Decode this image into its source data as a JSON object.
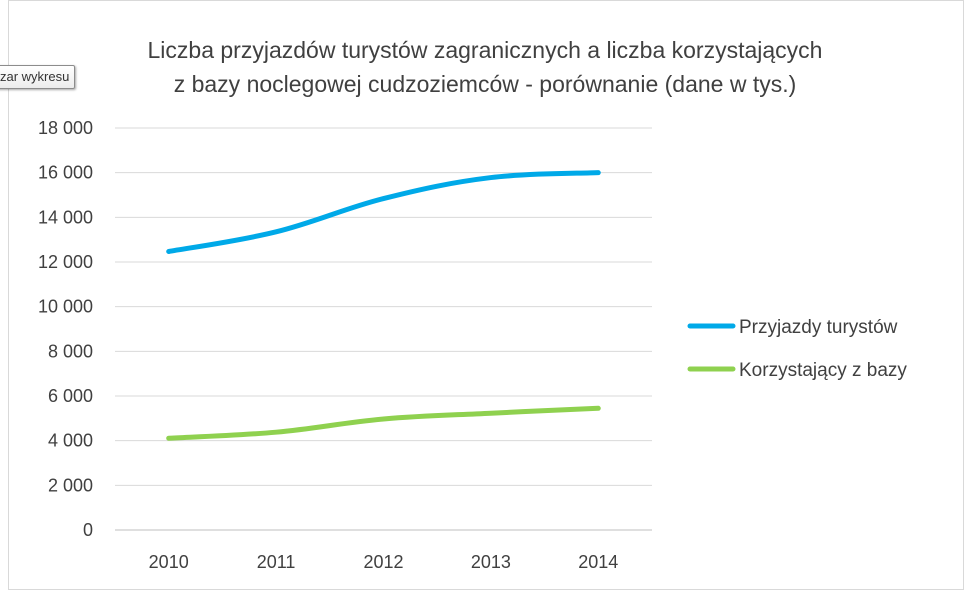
{
  "tooltip": {
    "label": "zar wykresu"
  },
  "chart_data": {
    "type": "line",
    "title_line1": "Liczba przyjazdów turystów zagranicznych a liczba korzystających",
    "title_line2": "z bazy noclegowej cudzoziemców - porównanie (dane w tys.)",
    "categories": [
      "2010",
      "2011",
      "2012",
      "2013",
      "2014"
    ],
    "ylim": [
      0,
      18000
    ],
    "yticks": [
      0,
      2000,
      4000,
      6000,
      8000,
      10000,
      12000,
      14000,
      16000,
      18000
    ],
    "ytick_labels": [
      "0",
      "2 000",
      "4 000",
      "6 000",
      "8 000",
      "10 000",
      "12 000",
      "14 000",
      "16 000",
      "18 000"
    ],
    "grid": true,
    "legend_position": "right",
    "series": [
      {
        "name": "Przyjazdy turystów",
        "color": "#00a9e8",
        "values": [
          12470,
          13350,
          14840,
          15780,
          16000
        ]
      },
      {
        "name": "Korzystający z bazy",
        "color": "#8fd14f",
        "values": [
          4110,
          4380,
          4970,
          5230,
          5450
        ]
      }
    ]
  }
}
